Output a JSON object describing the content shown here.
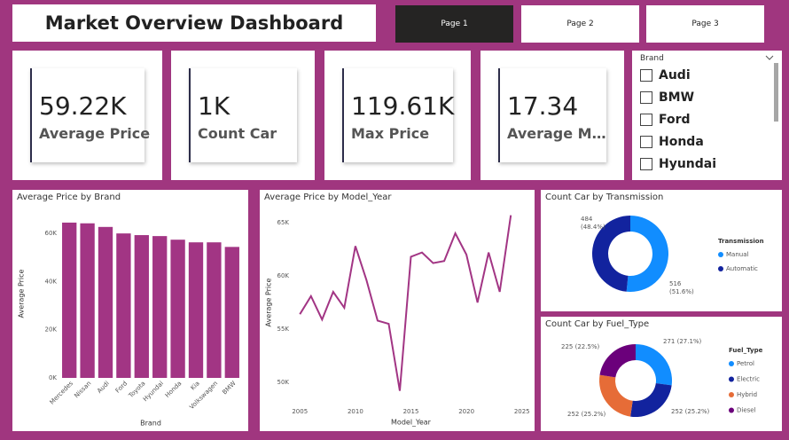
{
  "header": {
    "title": "Market Overview Dashboard"
  },
  "pages": [
    "Page 1",
    "Page 2",
    "Page 3"
  ],
  "cards": [
    {
      "value": "59.22K",
      "label": "Average Price"
    },
    {
      "value": "1K",
      "label": "Count Car"
    },
    {
      "value": "119.61K",
      "label": "Max Price"
    },
    {
      "value": "17.34",
      "label": "Average M…"
    }
  ],
  "slicer": {
    "title": "Brand",
    "items": [
      "Audi",
      "BMW",
      "Ford",
      "Honda",
      "Hyundai"
    ]
  },
  "chart_data": [
    {
      "type": "bar",
      "title": "Average Price by Brand",
      "x_label": "Brand",
      "y_label": "Average Price",
      "color": "#a23584",
      "categories": [
        "Mercedes",
        "Nissan",
        "Audi",
        "Ford",
        "Toyota",
        "Hyundai",
        "Honda",
        "Kia",
        "Volkswagen",
        "BMW"
      ],
      "values": [
        64500,
        64200,
        62700,
        60000,
        59300,
        58900,
        57400,
        56300,
        56300,
        54400
      ],
      "ylim": [
        0,
        70000
      ],
      "yticks": [
        {
          "value": 0,
          "label": "0K"
        },
        {
          "value": 20000,
          "label": "20K"
        },
        {
          "value": 40000,
          "label": "40K"
        },
        {
          "value": 60000,
          "label": "60K"
        }
      ]
    },
    {
      "type": "line",
      "title": "Average Price by Model_Year",
      "x_label": "Model_Year",
      "y_label": "Average Price",
      "color": "#a23584",
      "x": [
        2005,
        2006,
        2007,
        2008,
        2009,
        2010,
        2011,
        2012,
        2013,
        2014,
        2015,
        2016,
        2017,
        2018,
        2019,
        2020,
        2021,
        2022,
        2023,
        2024
      ],
      "values": [
        56400,
        58100,
        55900,
        58500,
        57000,
        62800,
        59600,
        55800,
        55500,
        49200,
        61800,
        62200,
        61200,
        61400,
        64000,
        62000,
        57500,
        62200,
        58500,
        65700
      ],
      "xlim": [
        2004.5,
        2025.5
      ],
      "xticks": [
        2005,
        2010,
        2015,
        2020,
        2025
      ],
      "ylim": [
        48500,
        66500
      ],
      "yticks": [
        {
          "value": 50000,
          "label": "50K"
        },
        {
          "value": 55000,
          "label": "55K"
        },
        {
          "value": 60000,
          "label": "60K"
        },
        {
          "value": 65000,
          "label": "65K"
        }
      ]
    },
    {
      "type": "donut",
      "title": "Count Car by Transmission",
      "legend_title": "Transmission",
      "categories": [
        "Manual",
        "Automatic"
      ],
      "values": [
        516,
        484
      ],
      "value_labels": [
        "516\n(51.6%)",
        "484\n(48.4%)"
      ],
      "colors": [
        "#118dff",
        "#12239e"
      ]
    },
    {
      "type": "donut",
      "title": "Count Car by Fuel_Type",
      "legend_title": "Fuel_Type",
      "categories": [
        "Petrol",
        "Electric",
        "Hybrid",
        "Diesel"
      ],
      "values": [
        271,
        252,
        252,
        225
      ],
      "value_labels": [
        "271 (27.1%)",
        "252 (25.2%)",
        "252 (25.2%)",
        "225 (22.5%)"
      ],
      "colors": [
        "#118dff",
        "#12239e",
        "#e66c37",
        "#6b007b"
      ]
    }
  ]
}
